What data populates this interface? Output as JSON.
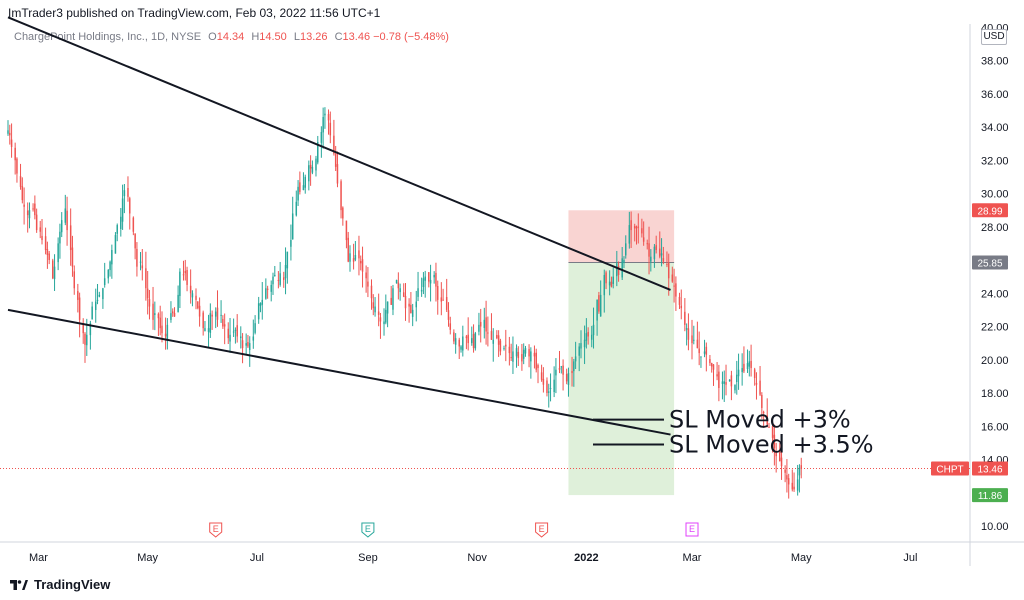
{
  "header": {
    "published": "ImTrader3 published on TradingView.com, Feb 03, 2022 11:56 UTC+1"
  },
  "legend": {
    "symbol_text": "ChargePoint Holdings, Inc., 1D, NYSE",
    "open_label": "O",
    "open": "14.34",
    "high_label": "H",
    "high": "14.50",
    "low_label": "L",
    "low": "13.26",
    "close_label": "C",
    "close": "13.46",
    "change": "−0.78 (−5.48%)"
  },
  "currency": "USD",
  "footer": {
    "brand": "TradingView"
  },
  "colors": {
    "up": "#26a69a",
    "down": "#ef5350",
    "stop_zone": "#f9d4d2",
    "target_zone": "#dff0da",
    "target_tag": "#4caf50",
    "stop_tag": "#ef5350",
    "entry_tag": "#787b86",
    "earnings": "#ef5350",
    "earnings_future": "#e040fb"
  },
  "chart_data": {
    "type": "candlestick",
    "ylim": [
      9,
      40
    ],
    "y_ticks": [
      "10.00",
      "12.00",
      "14.00",
      "16.00",
      "18.00",
      "20.00",
      "22.00",
      "24.00",
      "26.00",
      "28.00",
      "30.00",
      "32.00",
      "34.00",
      "36.00",
      "38.00",
      "40.00"
    ],
    "x_ticks": [
      "Mar",
      "May",
      "Jul",
      "Sep",
      "Nov",
      "2022",
      "Mar",
      "May",
      "Jul"
    ],
    "close_series": [
      33.8,
      33.5,
      32.8,
      32.0,
      31.2,
      30.4,
      29.6,
      29.2,
      28.7,
      29.0,
      29.1,
      28.7,
      27.8,
      27.7,
      27.2,
      26.6,
      26.3,
      26.0,
      24.9,
      25.6,
      27.0,
      27.7,
      28.4,
      29.1,
      27.8,
      26.6,
      25.6,
      24.3,
      23.6,
      22.4,
      21.6,
      20.9,
      21.5,
      22.2,
      23.2,
      23.5,
      23.6,
      23.9,
      24.3,
      24.9,
      25.4,
      25.9,
      26.6,
      27.5,
      28.1,
      28.6,
      29.7,
      30.2,
      29.8,
      28.8,
      27.7,
      26.7,
      25.6,
      25.9,
      25.5,
      24.3,
      23.7,
      23.2,
      22.4,
      22.8,
      22.5,
      21.9,
      21.6,
      21.4,
      22.1,
      22.8,
      22.8,
      22.6,
      23.9,
      25.3,
      25.1,
      25.2,
      24.5,
      24.0,
      24.0,
      23.6,
      23.1,
      22.6,
      21.9,
      21.9,
      21.9,
      22.8,
      22.6,
      22.9,
      22.4,
      22.7,
      22.0,
      22.0,
      21.3,
      21.5,
      21.7,
      21.8,
      21.4,
      21.4,
      20.7,
      21.0,
      20.8,
      21.0,
      21.4,
      22.2,
      23.4,
      23.4,
      23.6,
      24.3,
      24.2,
      24.5,
      25.0,
      25.1,
      24.8,
      25.2,
      24.8,
      25.7,
      26.5,
      27.2,
      28.8,
      29.5,
      30.4,
      30.1,
      30.5,
      31.0,
      31.7,
      31.5,
      31.6,
      32.1,
      33.1,
      33.7,
      34.6,
      34.8,
      34.4,
      33.5,
      32.4,
      31.6,
      30.6,
      29.0,
      28.5,
      27.2,
      25.9,
      26.4,
      25.9,
      26.3,
      26.1,
      25.8,
      25.3,
      24.9,
      24.4,
      23.7,
      23.1,
      23.2,
      22.7,
      22.3,
      22.3,
      23.0,
      23.5,
      23.3,
      24.3,
      24.8,
      24.3,
      24.3,
      23.8,
      23.1,
      23.2,
      22.8,
      23.0,
      23.5,
      24.3,
      24.2,
      24.9,
      25.0,
      24.7,
      24.8,
      25.1,
      24.4,
      23.6,
      23.5,
      23.6,
      23.0,
      22.4,
      21.8,
      21.1,
      21.3,
      20.8,
      20.8,
      21.4,
      21.3,
      21.0,
      21.3,
      20.7,
      21.6,
      22.1,
      22.0,
      22.4,
      21.7,
      21.6,
      21.2,
      21.2,
      21.3,
      20.9,
      20.5,
      20.7,
      20.8,
      20.4,
      20.1,
      20.5,
      20.7,
      20.1,
      19.9,
      20.6,
      20.7,
      20.2,
      20.5,
      20.2,
      19.4,
      19.5,
      18.8,
      18.5,
      18.0,
      18.1,
      18.3,
      18.8,
      19.4,
      19.4,
      19.6,
      19.1,
      18.7,
      19.2,
      19.2,
      19.9,
      20.2,
      20.8,
      21.0,
      21.2,
      21.6,
      21.4,
      21.5,
      22.1,
      23.6,
      22.9,
      23.9,
      25.1,
      24.6,
      24.7,
      24.4,
      25.0,
      25.8,
      25.1,
      26.1,
      26.0,
      27.0,
      28.1,
      27.8,
      27.9,
      27.9,
      28.0,
      27.6,
      27.1,
      27.0,
      26.2,
      26.2,
      26.8,
      26.6,
      26.2,
      26.4,
      25.9,
      25.7,
      24.9,
      24.7,
      24.4,
      23.8,
      23.3,
      23.1,
      22.1,
      21.9,
      21.2,
      21.0,
      21.2,
      20.7,
      20.4,
      20.2,
      20.5,
      20.3,
      19.8,
      19.6,
      19.4,
      19.0,
      18.3,
      18.7,
      18.7,
      18.5,
      18.8,
      18.4,
      18.5,
      19.1,
      19.4,
      19.5,
      19.3,
      19.8,
      19.9,
      19.5,
      18.9,
      18.5,
      17.9,
      17.1,
      16.8,
      16.1,
      15.9,
      15.3,
      14.7,
      14.2,
      13.9,
      13.6,
      13.2,
      12.8,
      12.5,
      12.2,
      12.2,
      12.8,
      13.5,
      13.46
    ],
    "lines": [
      {
        "label": "upper trendline",
        "x1": "2021-02-12",
        "y1": 40.6,
        "x2": "2022-02-17",
        "y2": 24.2
      },
      {
        "label": "lower trendline",
        "x1": "2021-02-12",
        "y1": 23.0,
        "x2": "2022-02-17",
        "y2": 15.5
      }
    ],
    "position": {
      "type": "long",
      "entry": 25.85,
      "stop": 28.99,
      "target": 11.86,
      "start": "2021-12-22",
      "end": "2022-02-19"
    },
    "price_tags": [
      {
        "value": "28.99",
        "price": 28.99,
        "color_key": "stop_tag"
      },
      {
        "value": "25.85",
        "price": 25.85,
        "color_key": "entry_tag"
      },
      {
        "value": "13.46",
        "price": 13.46,
        "color_key": "down",
        "label": "CHPT"
      },
      {
        "value": "11.86",
        "price": 11.86,
        "color_key": "target_tag"
      }
    ],
    "annotations": [
      {
        "text": "SL Moved +3%",
        "price": 16.4
      },
      {
        "text": "SL Moved +3.5%",
        "price": 14.9
      }
    ],
    "earnings_markers": [
      {
        "text": "E",
        "date": "2021-06-08",
        "kind": "past"
      },
      {
        "text": "E",
        "date": "2021-09-01",
        "kind": "future_green"
      },
      {
        "text": "E",
        "date": "2021-12-07",
        "kind": "past"
      },
      {
        "text": "E",
        "date": "2022-03-01",
        "kind": "future"
      }
    ]
  }
}
